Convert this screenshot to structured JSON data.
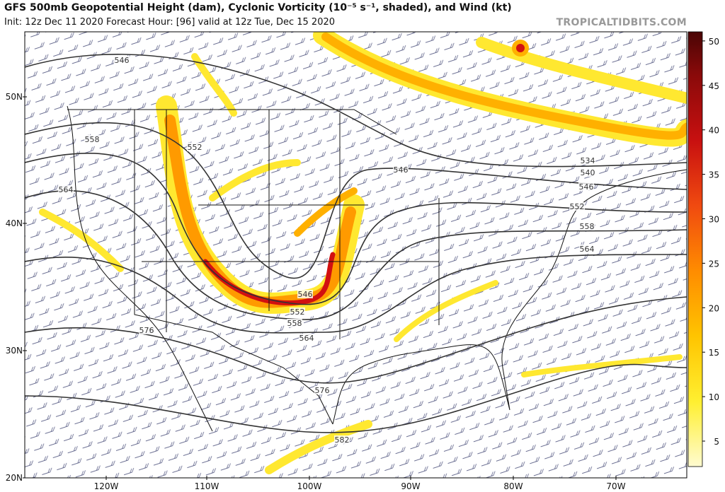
{
  "header": {
    "title": "GFS 500mb Geopotential Height (dam), Cyclonic Vorticity (10⁻⁵ s⁻¹, shaded), and Wind (kt)",
    "subtitle": "Init: 12z Dec 11 2020   Forecast Hour: [96]   valid at 12z Tue, Dec 15 2020",
    "watermark": "TROPICALTIDBITS.COM"
  },
  "map": {
    "lat_labels": [
      "50N",
      "40N",
      "30N",
      "20N"
    ],
    "lon_labels": [
      "120W",
      "110W",
      "100W",
      "90W",
      "80W",
      "70W"
    ],
    "contour_labels": [
      "546",
      "558",
      "552",
      "564",
      "576",
      "546",
      "552",
      "558",
      "564",
      "576",
      "582",
      "546",
      "534",
      "540",
      "546",
      "552",
      "558",
      "564"
    ]
  },
  "colorbar": {
    "ticks": [
      "5",
      "10",
      "15",
      "20",
      "25",
      "30",
      "35",
      "40",
      "45",
      "50"
    ]
  }
}
